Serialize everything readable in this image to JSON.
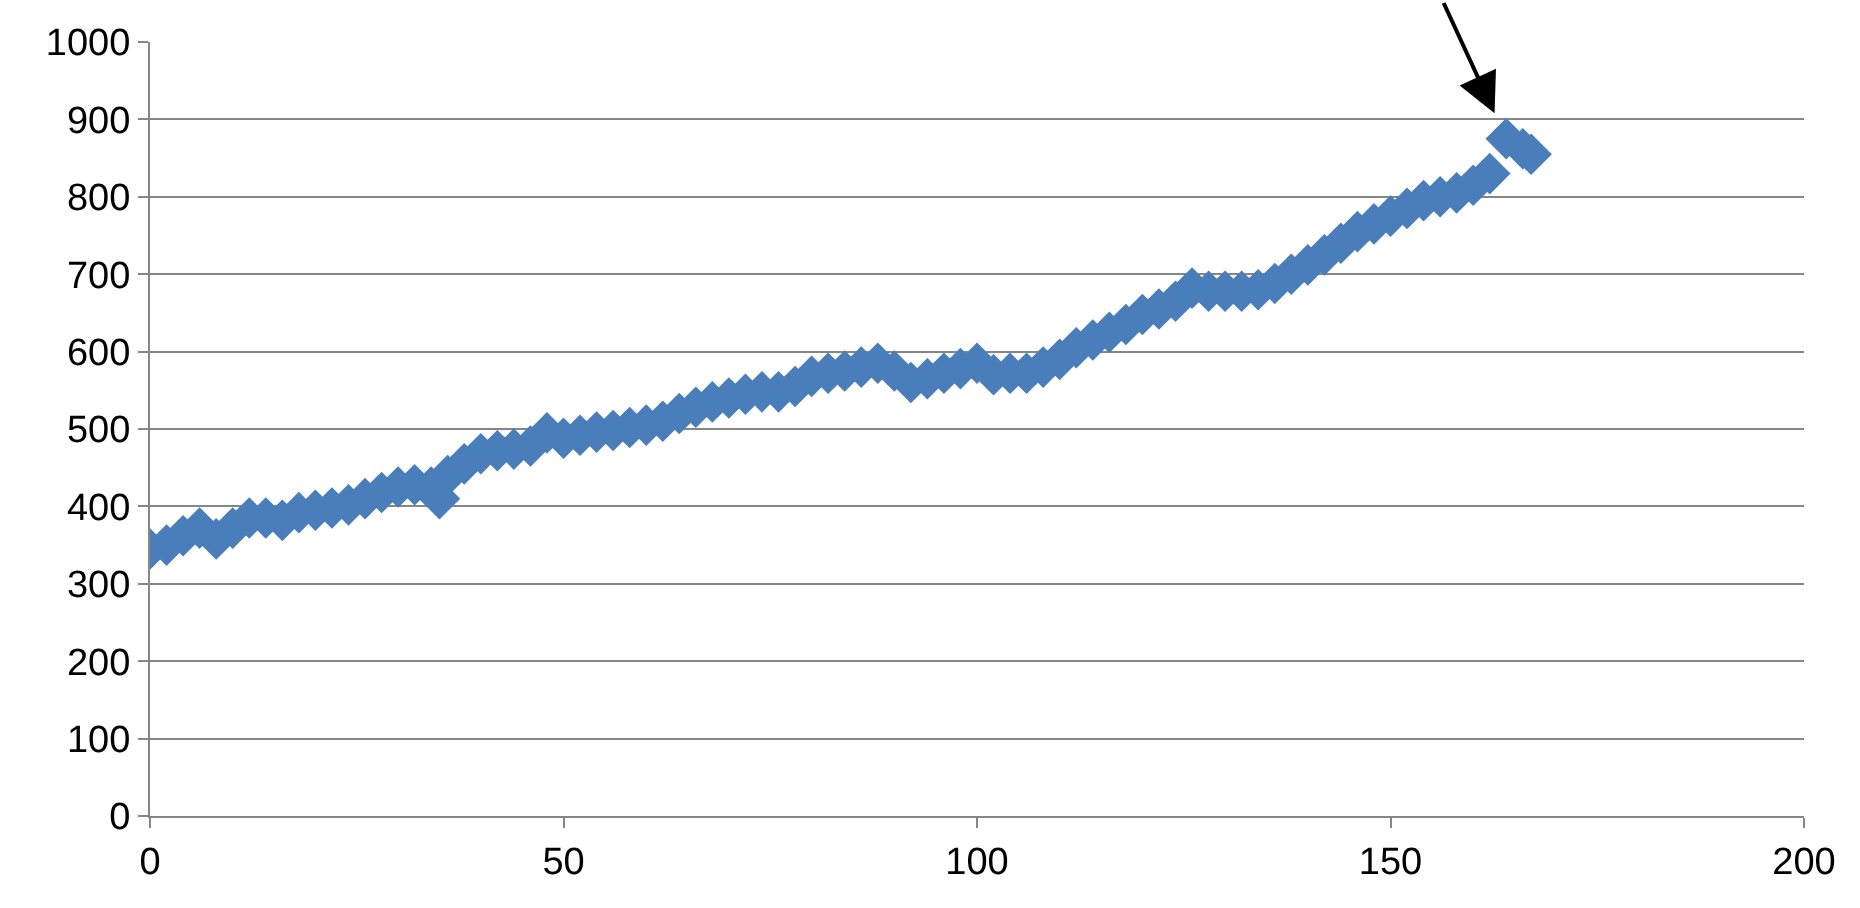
{
  "chart_data": {
    "type": "scatter",
    "marker": "diamond",
    "grid": "y",
    "x": [
      0,
      2,
      4,
      6,
      8,
      10,
      12,
      14,
      16,
      18,
      20,
      22,
      24,
      26,
      28,
      30,
      32,
      34,
      35,
      36,
      38,
      40,
      42,
      44,
      46,
      48,
      50,
      52,
      54,
      56,
      58,
      60,
      62,
      64,
      66,
      68,
      70,
      72,
      74,
      76,
      78,
      80,
      82,
      84,
      86,
      88,
      90,
      92,
      94,
      96,
      98,
      100,
      102,
      104,
      106,
      108,
      110,
      112,
      114,
      116,
      118,
      120,
      122,
      124,
      126,
      128,
      130,
      132,
      134,
      136,
      138,
      140,
      142,
      144,
      146,
      148,
      150,
      152,
      154,
      156,
      158,
      160,
      162,
      164,
      166,
      167
    ],
    "series": [
      {
        "color": "#4a7ebb",
        "values": [
          345,
          350,
          362,
          372,
          358,
          372,
          385,
          385,
          382,
          392,
          395,
          398,
          402,
          410,
          418,
          425,
          428,
          425,
          410,
          440,
          455,
          468,
          472,
          474,
          478,
          495,
          488,
          492,
          496,
          498,
          502,
          505,
          510,
          520,
          528,
          535,
          540,
          545,
          548,
          548,
          555,
          568,
          572,
          575,
          580,
          585,
          575,
          560,
          565,
          572,
          578,
          585,
          570,
          572,
          572,
          580,
          590,
          605,
          615,
          625,
          635,
          648,
          655,
          665,
          682,
          678,
          678,
          678,
          680,
          688,
          700,
          712,
          725,
          740,
          755,
          765,
          775,
          785,
          795,
          800,
          805,
          815,
          830,
          875,
          862,
          855
        ]
      }
    ],
    "xlim": [
      0,
      200
    ],
    "xticks": [
      0,
      50,
      100,
      150,
      200
    ],
    "ylim": [
      0,
      1000
    ],
    "yticks": [
      0,
      100,
      200,
      300,
      400,
      500,
      600,
      700,
      800,
      900,
      1000
    ]
  }
}
